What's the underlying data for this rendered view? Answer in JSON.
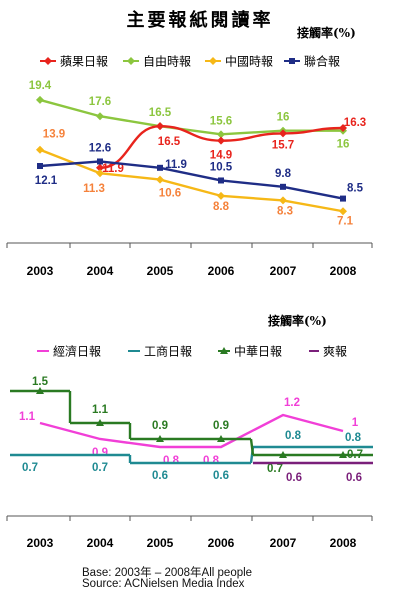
{
  "title": "主要報紙閱讀率",
  "colors": {
    "apple": "#e8241d",
    "liberty": "#8cc63f",
    "chinatimes": "#f6b817",
    "udn": "#1f2d86",
    "economic": "#f13fd7",
    "commercial": "#1f8a92",
    "chinadaily": "#2a7a22",
    "upaper": "#7a1f7a",
    "label_orange": "#f5823b"
  },
  "footer": {
    "base": "Base: 2003年 – 2008年All people",
    "source": "Source: ACNielsen Media Index"
  },
  "chart_data": [
    {
      "type": "line",
      "unit_label": "接觸率(%)",
      "categories": [
        "2003",
        "2004",
        "2005",
        "2006",
        "2007",
        "2008"
      ],
      "series": [
        {
          "name": "蘋果日報",
          "color_key": "apple",
          "values": [
            null,
            11.9,
            16.5,
            14.9,
            15.7,
            16.3
          ]
        },
        {
          "name": "自由時報",
          "color_key": "liberty",
          "values": [
            19.4,
            17.6,
            16.5,
            15.6,
            16.0,
            16.0
          ]
        },
        {
          "name": "中國時報",
          "color_key": "chinatimes",
          "values": [
            13.9,
            11.3,
            10.6,
            8.8,
            8.3,
            7.1
          ]
        },
        {
          "name": "聯合報",
          "color_key": "udn",
          "values": [
            12.1,
            12.6,
            11.9,
            10.5,
            9.8,
            8.5
          ]
        }
      ]
    },
    {
      "type": "line",
      "unit_label": "接觸率(%)",
      "categories": [
        "2003",
        "2004",
        "2005",
        "2006",
        "2007",
        "2008"
      ],
      "series": [
        {
          "name": "經濟日報",
          "color_key": "economic",
          "values": [
            1.1,
            0.9,
            0.8,
            0.8,
            1.2,
            1
          ]
        },
        {
          "name": "工商日報",
          "color_key": "commercial",
          "values": [
            0.7,
            0.7,
            0.6,
            0.6,
            0.8,
            0.8
          ]
        },
        {
          "name": "中華日報",
          "color_key": "chinadaily",
          "values": [
            1.5,
            1.1,
            0.9,
            0.9,
            0.7,
            0.7
          ]
        },
        {
          "name": "爽報",
          "color_key": "upaper",
          "values": [
            null,
            null,
            null,
            null,
            0.6,
            0.6
          ]
        }
      ]
    }
  ]
}
